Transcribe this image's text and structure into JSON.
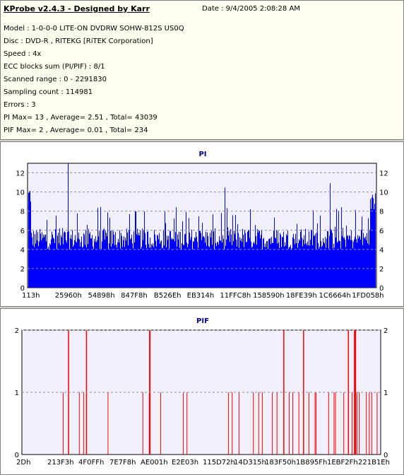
{
  "header": {
    "title": "KProbe v2.4.3 - Designed by Karr",
    "date": "Date : 9/4/2005 2:08:28 AM",
    "lines": [
      "Model : 1-0-0-0 LITE-ON DVDRW SOHW-812S  US0Q",
      "Disc : DVD-R , RITEKG [RiTEK Corporation]",
      "Speed : 4x",
      "ECC blocks sum (PI/PIF) : 8/1",
      "Scanned range : 0 - 2291830",
      "Sampling count : 114981",
      "Errors : 3",
      "PI Max= 13 , Average= 2.51 , Total= 43039",
      "PIF Max= 2 , Average= 0.01 , Total= 234"
    ]
  },
  "colors": {
    "pi_fill": "#0000ff",
    "pif_bar": "#ff0000",
    "plot_bg": "#f0f0ff",
    "grid": "#909090",
    "title": "#000080"
  },
  "chart_data": [
    {
      "type": "bar",
      "title": "PI",
      "xlabel": "",
      "ylabel": "",
      "ylim": [
        0,
        13
      ],
      "yticks": [
        "0",
        "2",
        "4",
        "6",
        "8",
        "10",
        "12"
      ],
      "xticks": [
        "113h",
        "25960h",
        "54898h",
        "847F8h",
        "B526Eh",
        "EB314h",
        "11FFC8h",
        "158590h",
        "18FE39h",
        "1C6664h",
        "1FD058h"
      ],
      "grid": true,
      "baseline": 4,
      "typical_upper": 6,
      "max": 13,
      "note_values": "dense per-sample PI counts, mostly 4-6, spikes to 8-11, max 13"
    },
    {
      "type": "bar",
      "title": "PIF",
      "xlabel": "",
      "ylabel": "",
      "ylim": [
        0,
        2
      ],
      "yticks": [
        "0",
        "1",
        "2"
      ],
      "xticks": [
        "2Dh",
        "213F3h",
        "4F0FFh",
        "7E7F8h",
        "AE001h",
        "E2E03h",
        "115D72h",
        "14D315h",
        "183F50h",
        "1B895Fh",
        "1EBF2Fh",
        "221B1Eh"
      ],
      "grid": true,
      "spikes_value_2": [
        0.13,
        0.18,
        0.356,
        0.357,
        0.73,
        0.785,
        0.91,
        0.927,
        0.928,
        0.93
      ],
      "spikes_value_1": [
        0.115,
        0.16,
        0.172,
        0.24,
        0.337,
        0.355,
        0.387,
        0.45,
        0.46,
        0.576,
        0.586,
        0.605,
        0.645,
        0.66,
        0.67,
        0.698,
        0.711,
        0.745,
        0.755,
        0.772,
        0.8,
        0.817,
        0.82,
        0.855,
        0.87,
        0.874,
        0.897,
        0.92,
        0.934,
        0.94,
        0.96,
        0.968,
        0.975,
        0.99
      ]
    }
  ]
}
